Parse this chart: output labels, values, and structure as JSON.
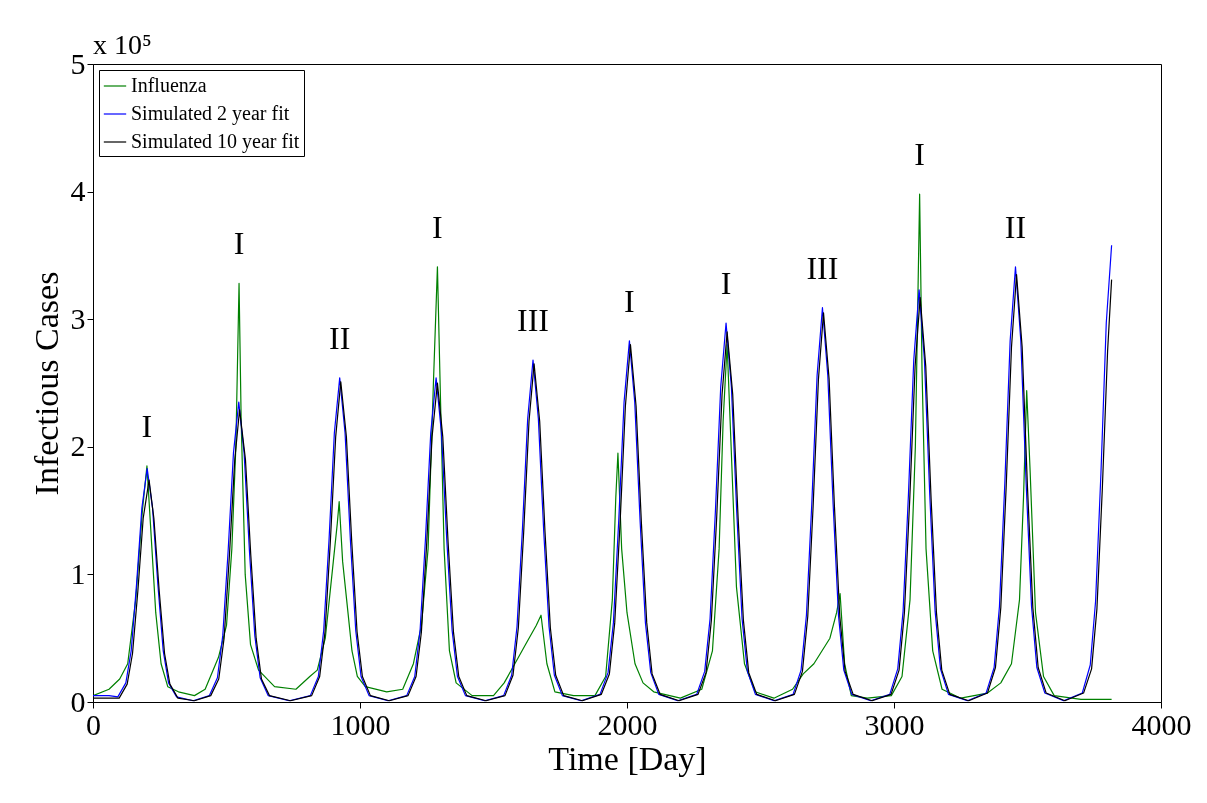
{
  "chart_data": {
    "type": "line",
    "xlabel": "Time [Day]",
    "ylabel": "Infectious Cases",
    "xlim": [
      0,
      4000
    ],
    "ylim": [
      0,
      5
    ],
    "xticks": [
      0,
      1000,
      2000,
      3000,
      4000
    ],
    "yticks": [
      0,
      1,
      2,
      3,
      4,
      5
    ],
    "legend": "top left",
    "series": [
      {
        "name": "Influenza",
        "color": "#008000",
        "x": [
          0,
          60,
          100,
          130,
          160,
          185,
          202,
          215,
          235,
          255,
          280,
          320,
          380,
          420,
          470,
          500,
          520,
          535,
          547,
          555,
          570,
          590,
          620,
          680,
          760,
          812,
          840,
          870,
          900,
          915,
          922,
          935,
          950,
          970,
          990,
          1020,
          1100,
          1160,
          1200,
          1230,
          1255,
          1275,
          1290,
          1300,
          1315,
          1335,
          1360,
          1420,
          1500,
          1540,
          1580,
          1620,
          1660,
          1678,
          1700,
          1730,
          1800,
          1880,
          1920,
          1945,
          1958,
          1966,
          1980,
          2000,
          2030,
          2060,
          2100,
          2200,
          2280,
          2320,
          2345,
          2360,
          2375,
          2390,
          2410,
          2440,
          2480,
          2550,
          2620,
          2660,
          2700,
          2760,
          2785,
          2798,
          2815,
          2840,
          2900,
          2990,
          3030,
          3060,
          3080,
          3096,
          3105,
          3120,
          3145,
          3180,
          3250,
          3350,
          3400,
          3440,
          3470,
          3485,
          3497,
          3510,
          3530,
          3560,
          3600,
          3700,
          3815
        ],
        "values": [
          0.05,
          0.1,
          0.18,
          0.3,
          0.8,
          1.5,
          1.85,
          1.4,
          0.7,
          0.3,
          0.12,
          0.08,
          0.05,
          0.1,
          0.35,
          0.6,
          1.2,
          2.0,
          3.28,
          2.2,
          1.0,
          0.45,
          0.25,
          0.12,
          0.1,
          0.2,
          0.25,
          0.5,
          1.1,
          1.4,
          1.57,
          1.1,
          0.8,
          0.4,
          0.2,
          0.12,
          0.08,
          0.1,
          0.3,
          0.6,
          1.2,
          2.5,
          3.41,
          2.5,
          1.2,
          0.4,
          0.15,
          0.05,
          0.05,
          0.15,
          0.3,
          0.45,
          0.6,
          0.68,
          0.3,
          0.08,
          0.05,
          0.05,
          0.2,
          0.8,
          1.6,
          1.95,
          1.2,
          0.7,
          0.3,
          0.15,
          0.08,
          0.03,
          0.1,
          0.4,
          1.2,
          2.2,
          2.8,
          2.0,
          0.9,
          0.3,
          0.08,
          0.03,
          0.1,
          0.22,
          0.3,
          0.5,
          0.7,
          0.85,
          0.3,
          0.05,
          0.03,
          0.05,
          0.2,
          0.8,
          2.0,
          3.98,
          2.6,
          1.2,
          0.4,
          0.1,
          0.03,
          0.07,
          0.15,
          0.3,
          0.8,
          1.6,
          2.44,
          1.8,
          0.7,
          0.2,
          0.05,
          0.02,
          0.02
        ]
      },
      {
        "name": "Simulated 2 year fit",
        "color": "#0000ff",
        "x": [
          0,
          60,
          93,
          123,
          143,
          163,
          183,
          203,
          223,
          243,
          263,
          283,
          313,
          375,
          436,
          466,
          486,
          506,
          526,
          546,
          566,
          586,
          606,
          626,
          656,
          735,
          814,
          844,
          864,
          884,
          904,
          924,
          944,
          964,
          984,
          1004,
          1034,
          1105,
          1175,
          1205,
          1225,
          1245,
          1265,
          1285,
          1305,
          1325,
          1345,
          1365,
          1395,
          1467,
          1538,
          1568,
          1588,
          1608,
          1628,
          1648,
          1668,
          1688,
          1708,
          1728,
          1758,
          1828,
          1899,
          1929,
          1949,
          1969,
          1989,
          2009,
          2029,
          2049,
          2069,
          2089,
          2119,
          2190,
          2261,
          2291,
          2311,
          2331,
          2351,
          2371,
          2391,
          2411,
          2431,
          2451,
          2481,
          2551,
          2622,
          2652,
          2672,
          2692,
          2712,
          2732,
          2752,
          2772,
          2792,
          2812,
          2842,
          2913,
          2984,
          3014,
          3034,
          3054,
          3074,
          3094,
          3114,
          3134,
          3154,
          3174,
          3204,
          3275,
          3345,
          3375,
          3395,
          3415,
          3435,
          3455,
          3475,
          3495,
          3515,
          3535,
          3565,
          3635,
          3705,
          3735,
          3755,
          3775,
          3795,
          3815
        ],
        "values": [
          0.05,
          0.05,
          0.04,
          0.15,
          0.4,
          0.92,
          1.52,
          1.83,
          1.52,
          0.92,
          0.4,
          0.15,
          0.04,
          0.01,
          0.05,
          0.19,
          0.52,
          1.18,
          1.95,
          2.35,
          1.95,
          1.18,
          0.52,
          0.19,
          0.05,
          0.01,
          0.05,
          0.2,
          0.56,
          1.27,
          2.11,
          2.54,
          2.11,
          1.27,
          0.56,
          0.2,
          0.05,
          0.01,
          0.05,
          0.2,
          0.56,
          1.27,
          2.11,
          2.54,
          2.11,
          1.27,
          0.56,
          0.2,
          0.05,
          0.01,
          0.05,
          0.21,
          0.59,
          1.34,
          2.22,
          2.68,
          2.22,
          1.34,
          0.59,
          0.21,
          0.05,
          0.01,
          0.06,
          0.23,
          0.62,
          1.42,
          2.35,
          2.83,
          2.35,
          1.42,
          0.62,
          0.23,
          0.06,
          0.01,
          0.06,
          0.24,
          0.65,
          1.49,
          2.47,
          2.97,
          2.47,
          1.49,
          0.65,
          0.24,
          0.06,
          0.01,
          0.06,
          0.25,
          0.68,
          1.55,
          2.56,
          3.09,
          2.56,
          1.55,
          0.68,
          0.25,
          0.06,
          0.01,
          0.06,
          0.26,
          0.71,
          1.62,
          2.68,
          3.23,
          2.68,
          1.62,
          0.71,
          0.26,
          0.06,
          0.01,
          0.07,
          0.27,
          0.75,
          1.71,
          2.83,
          3.41,
          2.83,
          1.71,
          0.75,
          0.27,
          0.07,
          0.01,
          0.07,
          0.29,
          0.79,
          1.79,
          2.97,
          3.58
        ]
      },
      {
        "name": "Simulated 10 year fit",
        "color": "#000000",
        "x": [
          0,
          60,
          98,
          128,
          148,
          168,
          188,
          210,
          228,
          248,
          268,
          288,
          318,
          380,
          441,
          471,
          491,
          511,
          531,
          549,
          571,
          591,
          611,
          631,
          661,
          740,
          819,
          849,
          869,
          889,
          909,
          928,
          949,
          969,
          989,
          1009,
          1039,
          1110,
          1180,
          1210,
          1230,
          1250,
          1270,
          1290,
          1310,
          1330,
          1350,
          1370,
          1400,
          1472,
          1543,
          1573,
          1593,
          1613,
          1633,
          1652,
          1673,
          1693,
          1713,
          1733,
          1763,
          1833,
          1904,
          1934,
          1954,
          1974,
          1994,
          2013,
          2034,
          2054,
          2074,
          2094,
          2124,
          2195,
          2266,
          2296,
          2316,
          2336,
          2356,
          2375,
          2396,
          2416,
          2436,
          2456,
          2486,
          2556,
          2627,
          2657,
          2677,
          2697,
          2717,
          2736,
          2757,
          2777,
          2797,
          2817,
          2847,
          2918,
          2989,
          3019,
          3039,
          3059,
          3079,
          3098,
          3119,
          3139,
          3159,
          3179,
          3209,
          3280,
          3350,
          3380,
          3400,
          3420,
          3440,
          3459,
          3480,
          3500,
          3520,
          3540,
          3570,
          3640,
          3710,
          3740,
          3760,
          3780,
          3800,
          3815
        ],
        "values": [
          0.03,
          0.03,
          0.03,
          0.14,
          0.38,
          0.87,
          1.44,
          1.74,
          1.44,
          0.87,
          0.38,
          0.14,
          0.03,
          0.01,
          0.05,
          0.18,
          0.5,
          1.15,
          1.9,
          2.29,
          1.9,
          1.15,
          0.5,
          0.18,
          0.05,
          0.01,
          0.05,
          0.2,
          0.55,
          1.26,
          2.08,
          2.51,
          2.08,
          1.26,
          0.55,
          0.2,
          0.05,
          0.01,
          0.05,
          0.2,
          0.55,
          1.25,
          2.08,
          2.5,
          2.08,
          1.25,
          0.55,
          0.2,
          0.05,
          0.01,
          0.05,
          0.21,
          0.58,
          1.33,
          2.2,
          2.65,
          2.2,
          1.33,
          0.58,
          0.21,
          0.05,
          0.01,
          0.06,
          0.22,
          0.62,
          1.4,
          2.32,
          2.8,
          2.32,
          1.4,
          0.62,
          0.22,
          0.06,
          0.01,
          0.06,
          0.23,
          0.64,
          1.45,
          2.41,
          2.9,
          2.41,
          1.45,
          0.64,
          0.23,
          0.06,
          0.01,
          0.06,
          0.24,
          0.67,
          1.53,
          2.53,
          3.05,
          2.53,
          1.53,
          0.67,
          0.24,
          0.06,
          0.01,
          0.06,
          0.25,
          0.7,
          1.59,
          2.63,
          3.17,
          2.63,
          1.59,
          0.7,
          0.25,
          0.06,
          0.01,
          0.07,
          0.27,
          0.74,
          1.68,
          2.78,
          3.35,
          2.78,
          1.68,
          0.74,
          0.27,
          0.07,
          0.01,
          0.07,
          0.26,
          0.73,
          1.66,
          2.75,
          3.31
        ]
      }
    ],
    "annotations": [
      "x 10⁵",
      {
        "text": "I",
        "x": 202,
        "y": 1.85
      },
      {
        "text": "I",
        "x": 547,
        "y": 3.28
      },
      {
        "text": "II",
        "x": 924,
        "y": 2.54
      },
      {
        "text": "I",
        "x": 1290,
        "y": 3.41
      },
      {
        "text": "III",
        "x": 1648,
        "y": 2.68
      },
      {
        "text": "I",
        "x": 2009,
        "y": 2.83
      },
      {
        "text": "I",
        "x": 2371,
        "y": 2.97
      },
      {
        "text": "III",
        "x": 2732,
        "y": 3.09
      },
      {
        "text": "I",
        "x": 3096,
        "y": 3.98
      },
      {
        "text": "II",
        "x": 3455,
        "y": 3.41
      }
    ]
  }
}
